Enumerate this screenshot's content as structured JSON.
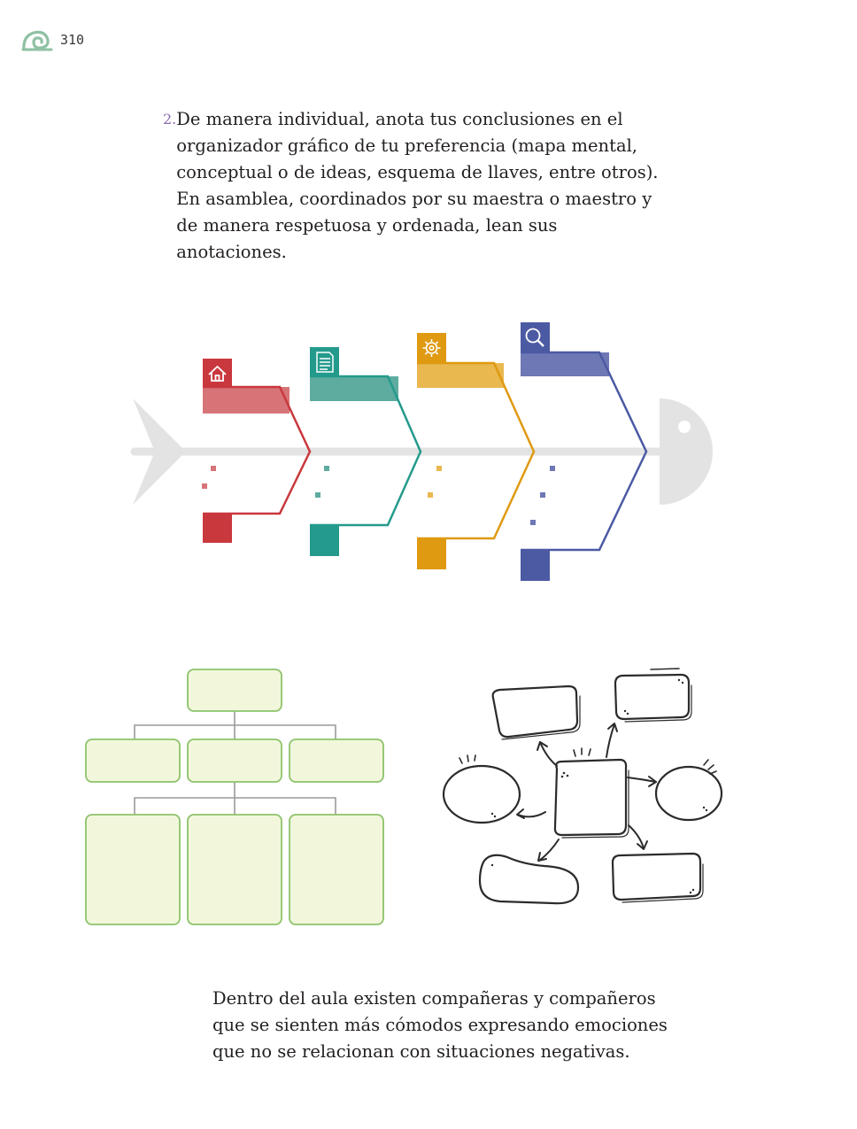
{
  "header": {
    "page_number": "310",
    "logo_icon": "snail-shell-icon",
    "logo_color": "#8fc1a3"
  },
  "activity": {
    "number": "2.",
    "text": "De manera individual, anota tus conclusiones en el organizador gráfico de tu preferencia (mapa mental, conceptual o de ideas, esquema de llaves, entre otros). En asamblea, coordinados por su maestra o maestro y de manera respetuosa y ordenada, lean sus anotaciones."
  },
  "fishbone": {
    "spine_color": "#e3e3e3",
    "bones": [
      {
        "color": "#c9383d",
        "light": "#d77478",
        "icon": "house-icon"
      },
      {
        "color": "#249a8c",
        "light": "#5dac9f",
        "icon": "document-icon"
      },
      {
        "color": "#df9a12",
        "light": "#e9b84f",
        "icon": "gear-icon"
      },
      {
        "color": "#4b5aa3",
        "light": "#6e78b5",
        "icon": "magnifier-icon"
      }
    ]
  },
  "orgchart": {
    "fill": "#f2f7dc",
    "stroke": "#8dc26b",
    "connector": "#9a9a9a"
  },
  "mindmap": {
    "stroke": "#2b2b2b"
  },
  "closing": {
    "text": "Dentro del aula existen compañeras y compañeros que se sienten más cómodos expresando emociones que no se relacionan con situaciones negativas."
  }
}
